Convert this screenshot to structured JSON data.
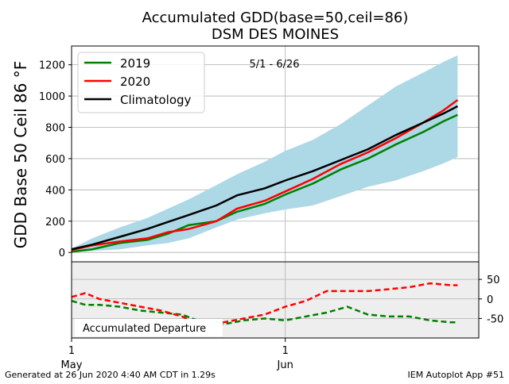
{
  "title_line1": "Accumulated GDD(base=50,ceil=86)",
  "title_line2": "DSM DES MOINES",
  "date_range_label": "5/1 - 6/26",
  "footer_left": "Generated at 26 Jun 2020 4:40 AM CDT in 1.29s",
  "footer_right": "IEM Autoplot App #51",
  "colors": {
    "y2019": "#008000",
    "y2020": "#ff0000",
    "climatology": "#000000",
    "range_band": "#add8e6",
    "departure_bg": "#eeeeee",
    "grid": "#b0b0b0"
  },
  "chart_data": [
    {
      "type": "line",
      "ylabel": "GDD Base 50 Ceil 86 °F",
      "ylim": [
        -60,
        1320
      ],
      "y_ticks": [
        0,
        200,
        400,
        600,
        800,
        1000,
        1200
      ],
      "x_day_range": [
        1,
        58
      ],
      "grid": true,
      "legend_position": "top-left",
      "legend": [
        "2019",
        "2020",
        "Climatology"
      ],
      "x": [
        1,
        4,
        8,
        12,
        15,
        18,
        22,
        25,
        29,
        32,
        36,
        40,
        44,
        48,
        52,
        55,
        57
      ],
      "series": [
        {
          "name": "2019",
          "values": [
            5,
            20,
            60,
            80,
            120,
            175,
            200,
            260,
            310,
            370,
            440,
            530,
            600,
            690,
            770,
            840,
            880
          ]
        },
        {
          "name": "2020",
          "values": [
            15,
            45,
            70,
            90,
            130,
            150,
            200,
            280,
            330,
            390,
            470,
            565,
            640,
            730,
            830,
            910,
            975
          ]
        },
        {
          "name": "Climatology",
          "values": [
            20,
            50,
            100,
            150,
            195,
            240,
            300,
            365,
            410,
            460,
            520,
            590,
            660,
            750,
            830,
            890,
            935
          ]
        }
      ],
      "range_upper": [
        25,
        90,
        160,
        220,
        280,
        340,
        430,
        500,
        580,
        650,
        720,
        820,
        940,
        1060,
        1150,
        1220,
        1260
      ],
      "range_lower": [
        0,
        10,
        20,
        45,
        60,
        90,
        160,
        210,
        250,
        275,
        300,
        360,
        420,
        460,
        520,
        570,
        610
      ]
    },
    {
      "type": "line",
      "title": "Accumulated Departure",
      "ylim": [
        -100,
        95
      ],
      "y_ticks": [
        50,
        0,
        -50
      ],
      "x_ticks": [
        {
          "day": 1,
          "label": "1\nMay"
        },
        {
          "day": 32,
          "label": "1\nJun"
        }
      ],
      "x": [
        1,
        3,
        5,
        8,
        11,
        14,
        17,
        20,
        23,
        26,
        29,
        32,
        35,
        38,
        41,
        44,
        47,
        50,
        53,
        56,
        57
      ],
      "series": [
        {
          "name": "2019",
          "values": [
            -5,
            -15,
            -15,
            -20,
            -30,
            -35,
            -40,
            -60,
            -65,
            -55,
            -50,
            -55,
            -45,
            -35,
            -20,
            -40,
            -45,
            -45,
            -55,
            -60,
            -60
          ]
        },
        {
          "name": "2020",
          "values": [
            5,
            15,
            0,
            -10,
            -20,
            -30,
            -45,
            -70,
            -60,
            -50,
            -40,
            -20,
            -5,
            20,
            20,
            20,
            25,
            30,
            40,
            35,
            35
          ]
        }
      ]
    }
  ]
}
